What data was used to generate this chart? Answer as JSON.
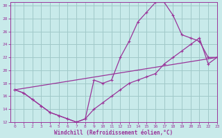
{
  "background_color": "#c8eaea",
  "grid_color": "#a0c8c8",
  "line_color": "#993399",
  "title": "Windchill (Refroidissement éolien,°C)",
  "xlim": [
    -0.5,
    23
  ],
  "ylim": [
    12,
    30.5
  ],
  "xticks": [
    0,
    1,
    2,
    3,
    4,
    5,
    6,
    7,
    8,
    9,
    10,
    11,
    12,
    13,
    14,
    15,
    16,
    17,
    18,
    19,
    20,
    21,
    22,
    23
  ],
  "yticks": [
    12,
    14,
    16,
    18,
    20,
    22,
    24,
    26,
    28,
    30
  ],
  "curve1_x": [
    0,
    1,
    2,
    3,
    4,
    5,
    6,
    7,
    8,
    9,
    10,
    11,
    12,
    13,
    14,
    15,
    16,
    17,
    18,
    19,
    20,
    21,
    22,
    23
  ],
  "curve1_y": [
    17,
    16.5,
    15.5,
    14.5,
    13.5,
    13,
    12.5,
    12,
    12.5,
    18.5,
    18,
    18.5,
    22,
    24.5,
    27.5,
    29,
    30.5,
    30.5,
    28.5,
    25.5,
    25,
    24.5,
    22,
    22
  ],
  "curve2_x": [
    0,
    1,
    2,
    3,
    4,
    5,
    6,
    7,
    8,
    9,
    10,
    11,
    12,
    13,
    14,
    15,
    16,
    17,
    18,
    19,
    20,
    21,
    22,
    23
  ],
  "curve2_y": [
    17,
    16.5,
    15.5,
    14.5,
    13.5,
    13,
    12.5,
    12,
    12.5,
    14,
    15,
    16,
    17,
    18,
    18.5,
    19,
    19.5,
    21,
    22,
    23,
    24,
    25,
    21,
    22
  ],
  "curve3_x": [
    0,
    23
  ],
  "curve3_y": [
    17,
    22
  ]
}
